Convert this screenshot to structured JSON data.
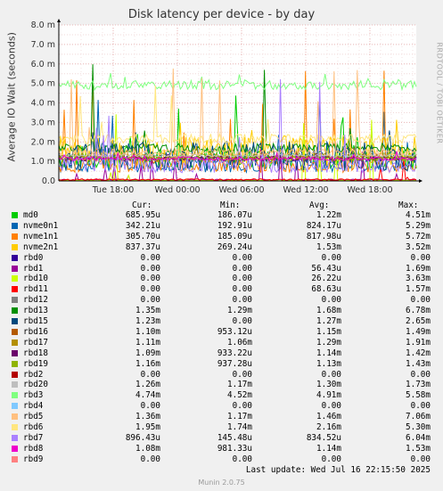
{
  "title": "Disk latency per device - by day",
  "side_text": "RRDTOOL / TOBI OETIKER",
  "footer": {
    "last_update": "Last update: Wed Jul 16 22:15:50 2025",
    "munin": "Munin 2.0.75"
  },
  "headers": {
    "cur": "Cur:",
    "min": "Min:",
    "avg": "Avg:",
    "max": "Max:"
  },
  "chart_data": {
    "type": "line",
    "ylabel": "Average IO Wait (seconds)",
    "ylim": [
      0,
      8.0
    ],
    "y_ticks": [
      "0.0",
      "1.0 m",
      "2.0 m",
      "3.0 m",
      "4.0 m",
      "5.0 m",
      "6.0 m",
      "7.0 m",
      "8.0 m"
    ],
    "x_ticks": [
      "Tue 18:00",
      "Wed 00:00",
      "Wed 06:00",
      "Wed 12:00",
      "Wed 18:00"
    ],
    "grid": true,
    "series": [
      {
        "name": "md0",
        "color": "#00cc00",
        "cur": "685.95u",
        "min": "186.07u",
        "avg": "1.22m",
        "max": "4.51m"
      },
      {
        "name": "nvme0n1",
        "color": "#0066b3",
        "cur": "342.21u",
        "min": "192.91u",
        "avg": "824.17u",
        "max": "5.29m"
      },
      {
        "name": "nvme1n1",
        "color": "#ff8000",
        "cur": "305.70u",
        "min": "185.09u",
        "avg": "817.98u",
        "max": "5.72m"
      },
      {
        "name": "nvme2n1",
        "color": "#ffcc00",
        "cur": "837.37u",
        "min": "269.24u",
        "avg": "1.53m",
        "max": "3.52m"
      },
      {
        "name": "rbd0",
        "color": "#330099",
        "cur": "0.00",
        "min": "0.00",
        "avg": "0.00",
        "max": "0.00"
      },
      {
        "name": "rbd1",
        "color": "#990099",
        "cur": "0.00",
        "min": "0.00",
        "avg": "56.43u",
        "max": "1.69m"
      },
      {
        "name": "rbd10",
        "color": "#ccff00",
        "cur": "0.00",
        "min": "0.00",
        "avg": "26.22u",
        "max": "3.63m"
      },
      {
        "name": "rbd11",
        "color": "#ff0000",
        "cur": "0.00",
        "min": "0.00",
        "avg": "68.63u",
        "max": "1.57m"
      },
      {
        "name": "rbd12",
        "color": "#808080",
        "cur": "0.00",
        "min": "0.00",
        "avg": "0.00",
        "max": "0.00"
      },
      {
        "name": "rbd13",
        "color": "#008f00",
        "cur": "1.35m",
        "min": "1.29m",
        "avg": "1.68m",
        "max": "6.78m"
      },
      {
        "name": "rbd15",
        "color": "#00487d",
        "cur": "1.23m",
        "min": "0.00",
        "avg": "1.27m",
        "max": "2.65m"
      },
      {
        "name": "rbd16",
        "color": "#b35a00",
        "cur": "1.10m",
        "min": "953.12u",
        "avg": "1.15m",
        "max": "1.49m"
      },
      {
        "name": "rbd17",
        "color": "#b38f00",
        "cur": "1.11m",
        "min": "1.06m",
        "avg": "1.29m",
        "max": "1.91m"
      },
      {
        "name": "rbd18",
        "color": "#6b006b",
        "cur": "1.09m",
        "min": "933.22u",
        "avg": "1.14m",
        "max": "1.42m"
      },
      {
        "name": "rbd19",
        "color": "#8fb300",
        "cur": "1.16m",
        "min": "937.28u",
        "avg": "1.13m",
        "max": "1.43m"
      },
      {
        "name": "rbd2",
        "color": "#b30000",
        "cur": "0.00",
        "min": "0.00",
        "avg": "0.00",
        "max": "0.00"
      },
      {
        "name": "rbd20",
        "color": "#bebebe",
        "cur": "1.26m",
        "min": "1.17m",
        "avg": "1.30m",
        "max": "1.73m"
      },
      {
        "name": "rbd3",
        "color": "#80ff80",
        "cur": "4.74m",
        "min": "4.52m",
        "avg": "4.91m",
        "max": "5.58m"
      },
      {
        "name": "rbd4",
        "color": "#80c9ff",
        "cur": "0.00",
        "min": "0.00",
        "avg": "0.00",
        "max": "0.00"
      },
      {
        "name": "rbd5",
        "color": "#ffc080",
        "cur": "1.36m",
        "min": "1.17m",
        "avg": "1.46m",
        "max": "7.06m"
      },
      {
        "name": "rbd6",
        "color": "#ffe680",
        "cur": "1.95m",
        "min": "1.74m",
        "avg": "2.16m",
        "max": "5.30m"
      },
      {
        "name": "rbd7",
        "color": "#aa80ff",
        "cur": "896.43u",
        "min": "145.48u",
        "avg": "834.52u",
        "max": "6.04m"
      },
      {
        "name": "rbd8",
        "color": "#ee00cc",
        "cur": "1.08m",
        "min": "981.33u",
        "avg": "1.14m",
        "max": "1.53m"
      },
      {
        "name": "rbd9",
        "color": "#ff8080",
        "cur": "0.00",
        "min": "0.00",
        "avg": "0.00",
        "max": "0.00"
      }
    ]
  }
}
